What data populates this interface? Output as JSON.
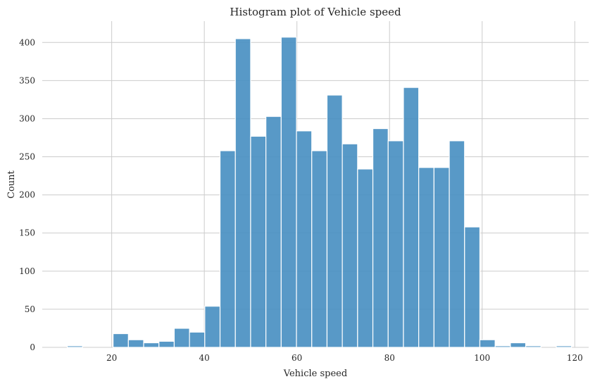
{
  "chart_data": {
    "type": "bar",
    "title": "Histogram plot of Vehicle speed",
    "xlabel": "Vehicle speed",
    "ylabel": "Count",
    "xlim": [
      5,
      123
    ],
    "ylim": [
      0,
      428
    ],
    "xticks": [
      20,
      40,
      60,
      80,
      100,
      120
    ],
    "yticks": [
      0,
      50,
      100,
      150,
      200,
      250,
      300,
      350,
      400
    ],
    "grid": true,
    "bar_color": "#4a90c2",
    "bin_width": 3.3,
    "bins": [
      {
        "x0": 10.4,
        "count": 2
      },
      {
        "x0": 13.7,
        "count": 0
      },
      {
        "x0": 17.0,
        "count": 0
      },
      {
        "x0": 20.3,
        "count": 18
      },
      {
        "x0": 23.6,
        "count": 10
      },
      {
        "x0": 26.9,
        "count": 6
      },
      {
        "x0": 30.2,
        "count": 8
      },
      {
        "x0": 33.5,
        "count": 25
      },
      {
        "x0": 36.8,
        "count": 20
      },
      {
        "x0": 40.1,
        "count": 54
      },
      {
        "x0": 43.4,
        "count": 258
      },
      {
        "x0": 46.7,
        "count": 405
      },
      {
        "x0": 50.0,
        "count": 277
      },
      {
        "x0": 53.3,
        "count": 303
      },
      {
        "x0": 56.6,
        "count": 407
      },
      {
        "x0": 59.9,
        "count": 284
      },
      {
        "x0": 63.2,
        "count": 258
      },
      {
        "x0": 66.5,
        "count": 331
      },
      {
        "x0": 69.8,
        "count": 267
      },
      {
        "x0": 73.1,
        "count": 234
      },
      {
        "x0": 76.4,
        "count": 287
      },
      {
        "x0": 79.7,
        "count": 271
      },
      {
        "x0": 83.0,
        "count": 341
      },
      {
        "x0": 86.3,
        "count": 236
      },
      {
        "x0": 89.6,
        "count": 236
      },
      {
        "x0": 92.9,
        "count": 271
      },
      {
        "x0": 96.2,
        "count": 158
      },
      {
        "x0": 99.5,
        "count": 10
      },
      {
        "x0": 102.8,
        "count": 2
      },
      {
        "x0": 106.1,
        "count": 6
      },
      {
        "x0": 109.4,
        "count": 2
      },
      {
        "x0": 112.7,
        "count": 0
      },
      {
        "x0": 116.0,
        "count": 2
      }
    ]
  }
}
